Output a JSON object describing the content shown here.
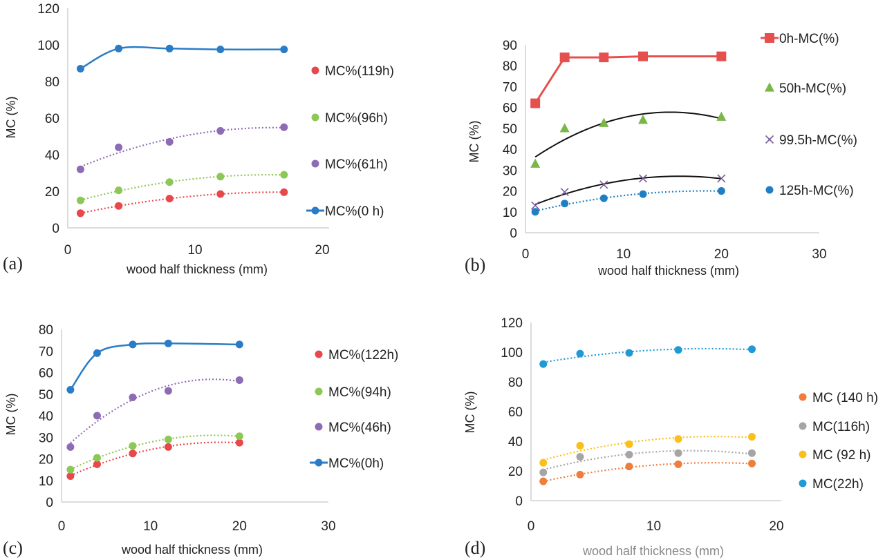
{
  "chart_data": [
    {
      "type": "line",
      "panel_label": "(a)",
      "xlabel": "wood half thickness (mm)",
      "ylabel": "MC (%)",
      "xlim": [
        0,
        20
      ],
      "ylim": [
        0,
        120
      ],
      "xticks": [
        "0",
        "10",
        "20"
      ],
      "yticks": [
        "0",
        "20",
        "40",
        "60",
        "80",
        "100",
        "120"
      ],
      "legend_position": "right",
      "x": [
        1,
        4,
        8,
        12,
        17
      ],
      "series": [
        {
          "name": "MC%(119h)",
          "values": [
            8,
            12,
            16,
            18.5,
            19.5
          ],
          "color": "#e8474b",
          "marker": "circle",
          "line": "trend-dotted"
        },
        {
          "name": "MC%(96h)",
          "values": [
            15,
            20.5,
            25,
            28,
            29
          ],
          "color": "#8dc755",
          "marker": "circle",
          "line": "trend-dotted"
        },
        {
          "name": "MC%(61h)",
          "values": [
            32,
            44,
            47,
            53,
            55
          ],
          "color": "#8e6bb5",
          "marker": "circle",
          "line": "trend-dotted"
        },
        {
          "name": "MC%(0 h)",
          "values": [
            87,
            98,
            98,
            97.5,
            97.5
          ],
          "color": "#2a7cc7",
          "marker": "circle",
          "line": "smooth"
        }
      ]
    },
    {
      "type": "line",
      "panel_label": "(b)",
      "xlabel": "wood half thickness (mm)",
      "ylabel": "MC (%)",
      "xlim": [
        0,
        30
      ],
      "ylim": [
        0,
        90
      ],
      "xticks": [
        "0",
        "10",
        "20",
        "30"
      ],
      "yticks": [
        "0",
        "10",
        "20",
        "30",
        "40",
        "50",
        "60",
        "70",
        "80",
        "90"
      ],
      "legend_position": "right",
      "x": [
        1,
        4,
        8,
        12,
        20
      ],
      "series": [
        {
          "name": "0h-MC(%)",
          "values": [
            62,
            84,
            84,
            84.5,
            84.5
          ],
          "color": "#e5504f",
          "marker": "square",
          "line": "straight"
        },
        {
          "name": "50h-MC(%)",
          "values": [
            33,
            50,
            52.5,
            54,
            55.5
          ],
          "color": "#7ab648",
          "marker": "triangle",
          "line": "trend-black"
        },
        {
          "name": "99.5h-MC(%)",
          "values": [
            13,
            19.5,
            23,
            26,
            26
          ],
          "color": "#7a5a9a",
          "marker": "x",
          "line": "trend-black"
        },
        {
          "name": "125h-MC(%)",
          "values": [
            10,
            14,
            16.5,
            18.5,
            20
          ],
          "color": "#1f7fc4",
          "marker": "circle",
          "line": "trend-dotted"
        }
      ]
    },
    {
      "type": "line",
      "panel_label": "(c)",
      "xlabel": "wood half thickness (mm)",
      "ylabel": "MC (%)",
      "xlim": [
        0,
        30
      ],
      "ylim": [
        0,
        80
      ],
      "xticks": [
        "0",
        "10",
        "20",
        "30"
      ],
      "yticks": [
        "0",
        "10",
        "20",
        "30",
        "40",
        "50",
        "60",
        "70",
        "80"
      ],
      "legend_position": "right",
      "x": [
        1,
        4,
        8,
        12,
        20
      ],
      "series": [
        {
          "name": "MC%(122h)",
          "values": [
            12,
            17.5,
            22.5,
            25.5,
            27.5
          ],
          "color": "#e8474b",
          "marker": "circle",
          "line": "trend-dotted"
        },
        {
          "name": "MC%(94h)",
          "values": [
            15,
            20.5,
            26,
            29,
            30.5
          ],
          "color": "#8dc755",
          "marker": "circle",
          "line": "trend-dotted"
        },
        {
          "name": "MC%(46h)",
          "values": [
            25.5,
            40,
            48.5,
            51.5,
            56.5
          ],
          "color": "#8e6bb5",
          "marker": "circle",
          "line": "trend-dotted"
        },
        {
          "name": "MC%(0h)",
          "values": [
            52,
            69,
            73,
            73.5,
            73
          ],
          "color": "#2a7cc7",
          "marker": "circle",
          "line": "smooth"
        }
      ]
    },
    {
      "type": "line",
      "panel_label": "(d)",
      "xlabel": "wood half thickness (mm)",
      "ylabel": "MC (%)",
      "xlim": [
        0,
        20
      ],
      "ylim": [
        0,
        120
      ],
      "xticks": [
        "0",
        "10",
        "20"
      ],
      "yticks": [
        "0",
        "20",
        "40",
        "60",
        "80",
        "100",
        "120"
      ],
      "legend_position": "right",
      "x": [
        1,
        4,
        8,
        12,
        18
      ],
      "series": [
        {
          "name": "MC (140 h)",
          "values": [
            13,
            17.5,
            23,
            24.5,
            25
          ],
          "color": "#ef7d3c",
          "marker": "circle",
          "line": "trend-dotted"
        },
        {
          "name": "MC(116h)",
          "values": [
            19,
            29.5,
            31,
            32,
            32
          ],
          "color": "#a5a5a5",
          "marker": "circle",
          "line": "trend-dotted"
        },
        {
          "name": "MC (92 h)",
          "values": [
            25.5,
            37,
            38,
            41.5,
            43
          ],
          "color": "#fbbf19",
          "marker": "circle",
          "line": "trend-dotted"
        },
        {
          "name": "MC(22h)",
          "values": [
            92,
            99,
            99.5,
            101.5,
            102
          ],
          "color": "#1f9ad6",
          "marker": "circle",
          "line": "trend-dotted"
        }
      ]
    }
  ]
}
